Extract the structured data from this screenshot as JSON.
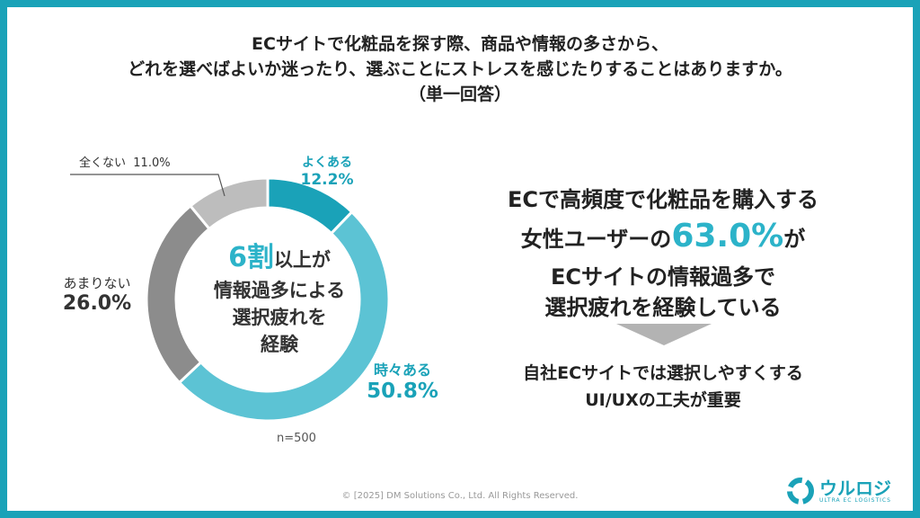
{
  "title_lines": [
    "ECサイトで化粧品を探す際、商品や情報の多さから、",
    "どれを選べばよいか迷ったり、選ぶことにストレスを感じたりすることはありますか。",
    "（単一回答）"
  ],
  "chart_data": {
    "type": "pie",
    "donut": true,
    "slices": [
      {
        "label": "よくある",
        "value": 12.2,
        "display": "12.2%",
        "color": "#1aa2b8"
      },
      {
        "label": "時々ある",
        "value": 50.8,
        "display": "50.8%",
        "color": "#5cc3d4"
      },
      {
        "label": "あまりない",
        "value": 26.0,
        "display": "26.0%",
        "color": "#8c8c8c"
      },
      {
        "label": "全くない",
        "value": 11.0,
        "display": "11.0%",
        "color": "#bdbdbd"
      }
    ],
    "sample": "n=500"
  },
  "center_text": {
    "highlight": "6割",
    "line1_rest": "以上が",
    "line2": "情報過多による",
    "line3": "選択疲れを",
    "line4": "経験"
  },
  "conclusion": {
    "line1": "ECで高頻度で化粧品を購入する",
    "line2_pre": "女性ユーザーの",
    "line2_highlight": "63.0%",
    "line2_post": "が",
    "line3": "ECサイトの情報過多で",
    "line4": "選択疲れを経験している"
  },
  "recommendation": {
    "line1": "自社ECサイトでは選択しやすくする",
    "line2": "UI/UXの工夫が重要"
  },
  "footer": "© [2025] DM Solutions Co., Ltd. All Rights Reserved.",
  "logo": {
    "name": "ウルロジ",
    "tagline": "ULTRA EC LOGISTICS"
  }
}
